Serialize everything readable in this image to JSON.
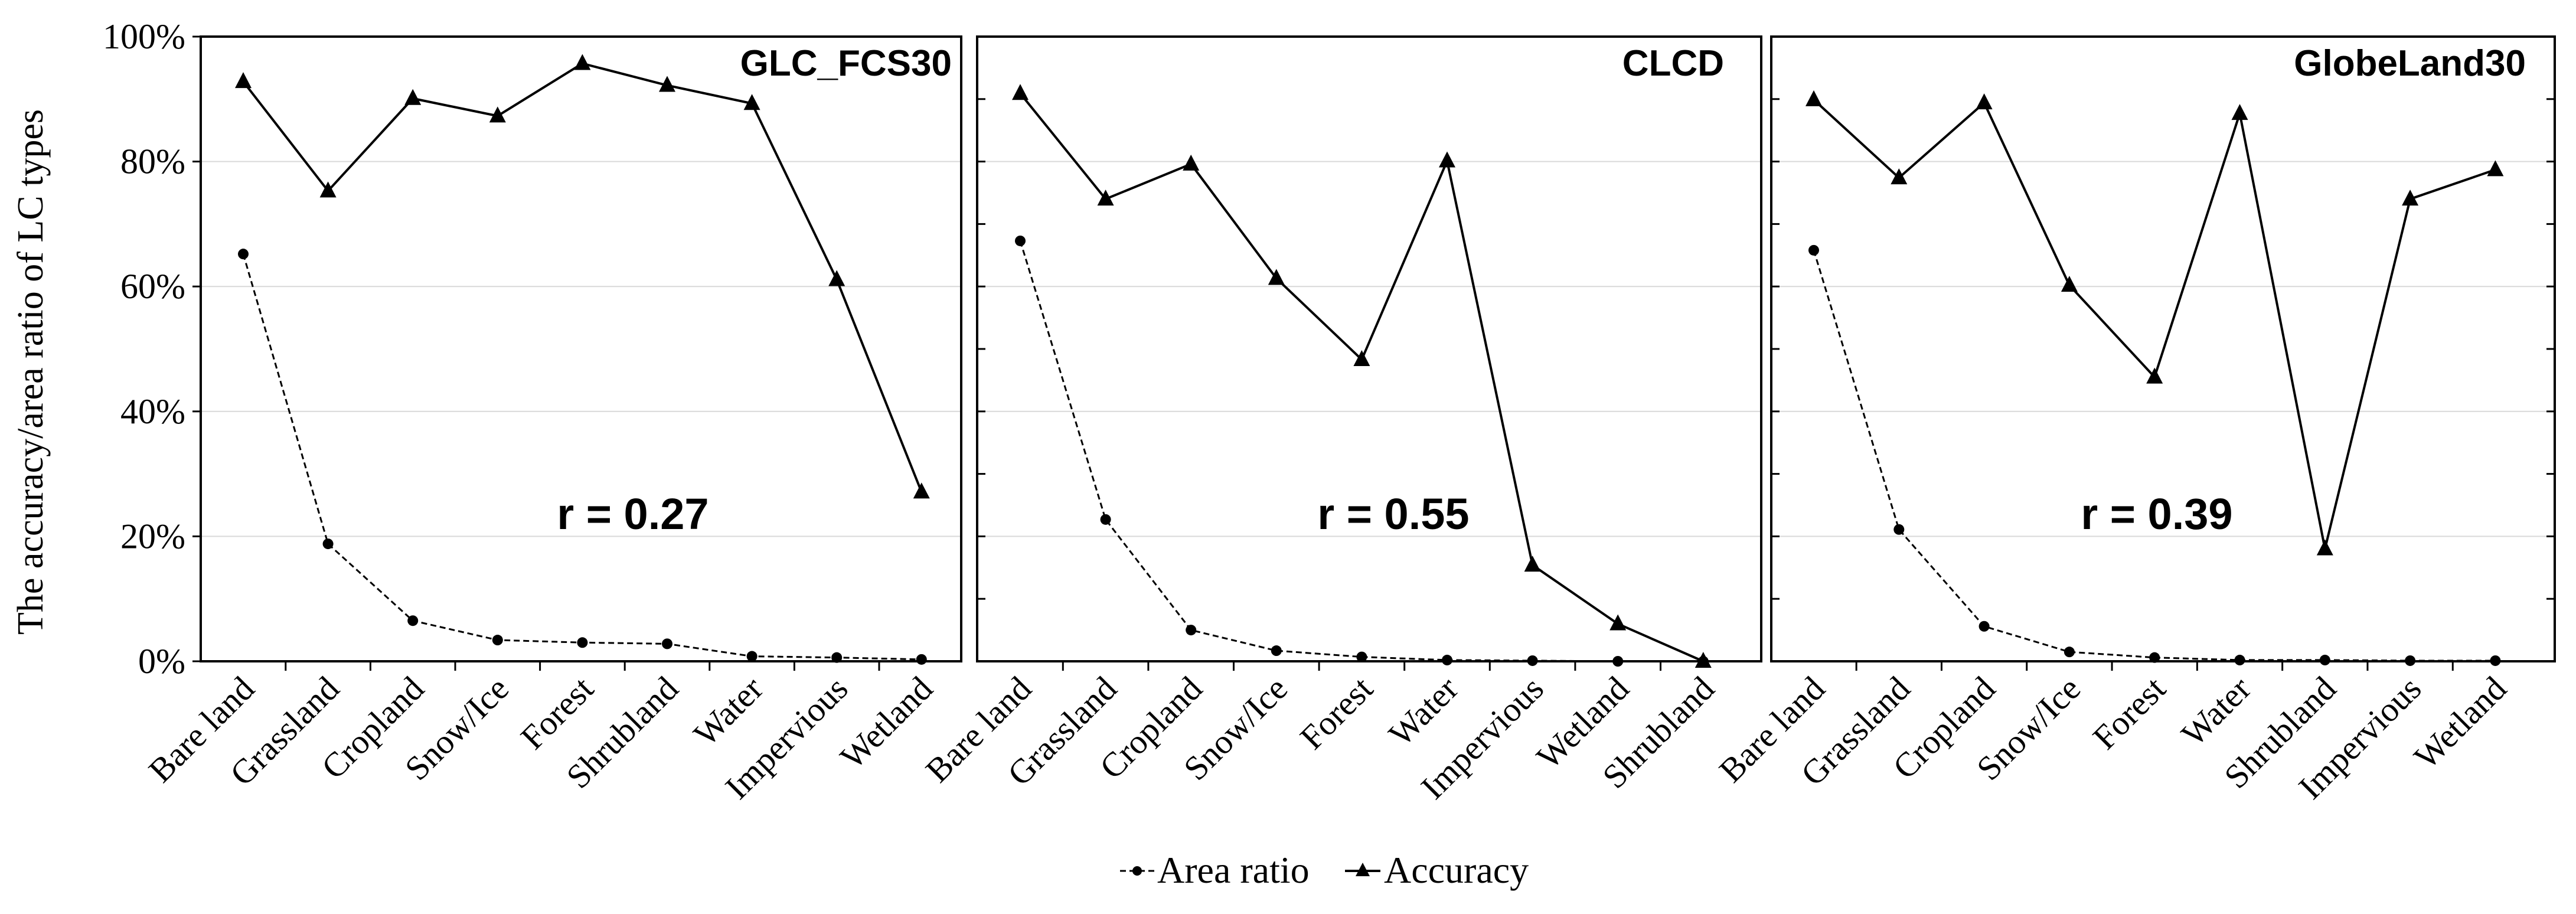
{
  "chart_data": {
    "type": "line",
    "ylabel": "The accuracy/area ratio of LC types",
    "y_ticks": [
      "0%",
      "20%",
      "40%",
      "60%",
      "80%",
      "100%"
    ],
    "ylim": [
      0,
      100
    ],
    "grid": true,
    "legend": {
      "position": "bottom-center",
      "entries": [
        "Area ratio",
        "Accuracy"
      ]
    },
    "panels": [
      {
        "title": "GLC_FCS30",
        "annotation": "r = 0.27",
        "categories": [
          "Bare land",
          "Grassland",
          "Cropland",
          "Snow/Ice",
          "Forest",
          "Shrubland",
          "Water",
          "Impervious",
          "Wetland"
        ],
        "series": [
          {
            "name": "Area ratio",
            "values": [
              65.2,
              18.8,
              6.5,
              3.4,
              3.0,
              2.8,
              0.8,
              0.6,
              0.3
            ]
          },
          {
            "name": "Accuracy",
            "values": [
              92.8,
              75.3,
              90.1,
              87.3,
              95.7,
              92.2,
              89.3,
              61.1,
              27.1
            ]
          }
        ]
      },
      {
        "title": "CLCD",
        "annotation": "r = 0.55",
        "categories": [
          "Bare land",
          "Grassland",
          "Cropland",
          "Snow/Ice",
          "Forest",
          "Water",
          "Impervious",
          "Wetland",
          "Shrubland"
        ],
        "series": [
          {
            "name": "Area ratio",
            "values": [
              67.3,
              22.7,
              5.0,
              1.7,
              0.7,
              0.2,
              0.1,
              0.0,
              0.0
            ]
          },
          {
            "name": "Accuracy",
            "values": [
              90.9,
              74.0,
              79.6,
              61.3,
              48.3,
              80.1,
              15.4,
              6.0,
              0.0
            ]
          }
        ]
      },
      {
        "title": "GlobeLand30",
        "annotation": "r = 0.39",
        "categories": [
          "Bare land",
          "Grassland",
          "Cropland",
          "Snow/Ice",
          "Forest",
          "Water",
          "Shrubland",
          "Impervious",
          "Wetland"
        ],
        "series": [
          {
            "name": "Area ratio",
            "values": [
              65.8,
              21.1,
              5.6,
              1.5,
              0.6,
              0.2,
              0.2,
              0.1,
              0.1
            ]
          },
          {
            "name": "Accuracy",
            "values": [
              89.9,
              77.4,
              89.4,
              60.2,
              45.5,
              87.7,
              18.0,
              74.0,
              78.7
            ]
          }
        ]
      }
    ]
  }
}
